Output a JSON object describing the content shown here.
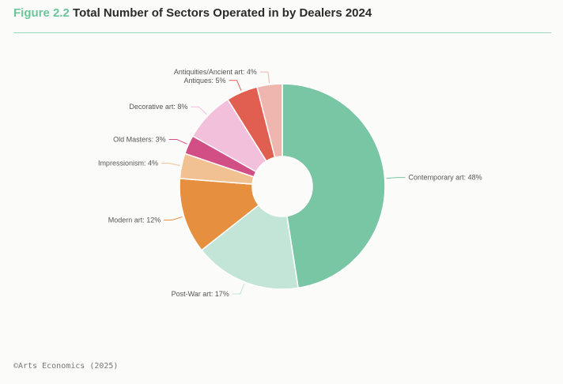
{
  "header": {
    "figure_label": "Figure 2.2",
    "title": "Total Number of Sectors Operated in by Dealers 2024"
  },
  "footer": {
    "source": "©Arts Economics (2025)"
  },
  "chart_data": {
    "type": "pie",
    "donut": true,
    "title": "Total Number of Sectors Operated in by Dealers 2024",
    "unit": "%",
    "slices": [
      {
        "label": "Contemporary art",
        "value": 48,
        "text": "Contemporary art: 48%",
        "color": "#79c6a4"
      },
      {
        "label": "Post-War art",
        "value": 17,
        "text": "Post-War art: 17%",
        "color": "#c2e5d8"
      },
      {
        "label": "Modern art",
        "value": 12,
        "text": "Modern art: 12%",
        "color": "#e6903f"
      },
      {
        "label": "Impressionism",
        "value": 4,
        "text": "Impressionism: 4%",
        "color": "#f1c192"
      },
      {
        "label": "Old Masters",
        "value": 3,
        "text": "Old Masters: 3%",
        "color": "#d24f86"
      },
      {
        "label": "Decorative art",
        "value": 8,
        "text": "Decorative art: 8%",
        "color": "#f2c0da"
      },
      {
        "label": "Antiques",
        "value": 5,
        "text": "Antiques: 5%",
        "color": "#e15f51"
      },
      {
        "label": "Antiquities/Ancient art",
        "value": 4,
        "text": "Antiquities/Ancient art: 4%",
        "color": "#efb5af"
      }
    ]
  }
}
